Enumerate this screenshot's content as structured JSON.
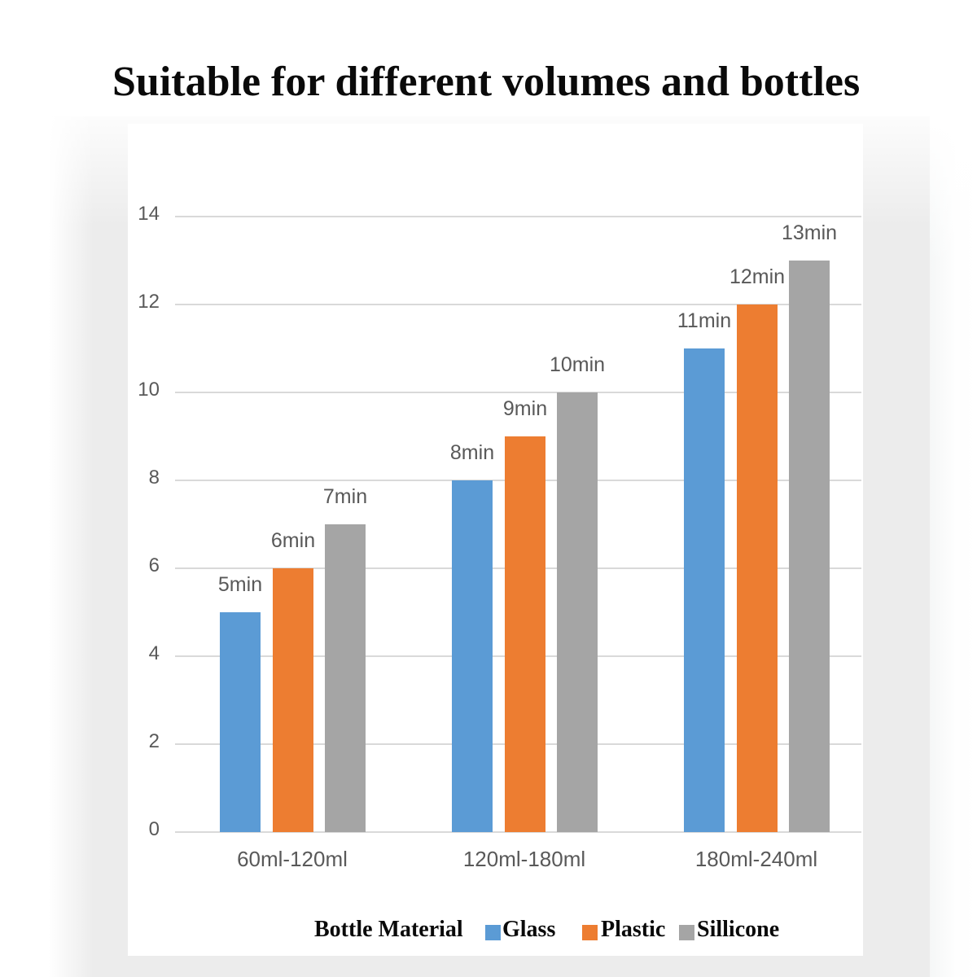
{
  "title": {
    "text": "Suitable for different volumes and bottles"
  },
  "chart_data": {
    "type": "bar",
    "title": "Suitable for different volumes and bottles",
    "categories": [
      "60ml-120ml",
      "120ml-180ml",
      "180ml-240ml"
    ],
    "series": [
      {
        "name": "Glass",
        "color": "#5B9BD5",
        "values": [
          5,
          8,
          11
        ]
      },
      {
        "name": "Plastic",
        "color": "#ED7D31",
        "values": [
          6,
          9,
          12
        ]
      },
      {
        "name": "Sillicone",
        "color": "#A5A5A5",
        "values": [
          7,
          10,
          13
        ]
      }
    ],
    "value_suffix": "min",
    "ylim": [
      0,
      14
    ],
    "yticks": [
      0,
      2,
      4,
      6,
      8,
      10,
      12,
      14
    ],
    "grid": true,
    "gridline_color": "#d9d9d9",
    "label_color": "#595959",
    "legend_position": "bottom",
    "legend_title": "Bottle Material"
  },
  "legend": {
    "title": "Bottle Material",
    "items": [
      {
        "label": "Glass",
        "color": "#5B9BD5"
      },
      {
        "label": "Plastic",
        "color": "#ED7D31"
      },
      {
        "label": "Sillicone",
        "color": "#A5A5A5"
      }
    ]
  }
}
